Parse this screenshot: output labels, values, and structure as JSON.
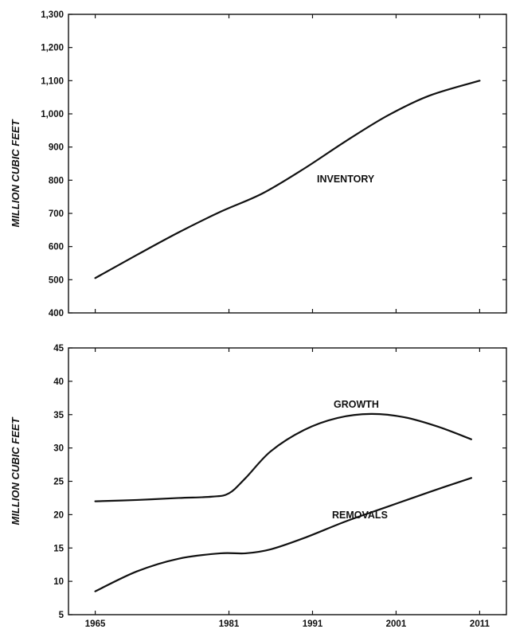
{
  "chart_data": [
    {
      "type": "line",
      "ylabel": "MILLION CUBIC FEET",
      "ylim": [
        400,
        1300
      ],
      "yticks": [
        "400",
        "500",
        "600",
        "700",
        "800",
        "900",
        "1,000",
        "1,100",
        "1,200",
        "1,300"
      ],
      "x_ticks": [
        1965,
        1981,
        1991,
        2001,
        2011
      ],
      "grid": false,
      "series": [
        {
          "name": "INVENTORY",
          "x": [
            1965,
            1970,
            1975,
            1980,
            1985,
            1990,
            1995,
            2000,
            2005,
            2011
          ],
          "y": [
            505,
            575,
            643,
            705,
            760,
            835,
            918,
            995,
            1055,
            1100
          ]
        }
      ]
    },
    {
      "type": "line",
      "ylabel": "MILLION CUBIC FEET",
      "ylim": [
        5,
        45
      ],
      "yticks": [
        "5",
        "10",
        "15",
        "20",
        "25",
        "30",
        "35",
        "40",
        "45"
      ],
      "x_ticks": [
        1965,
        1981,
        1991,
        2001,
        2011
      ],
      "xtick_labels": [
        "1965",
        "1981",
        "1991",
        "2001",
        "2011"
      ],
      "grid": false,
      "series": [
        {
          "name": "GROWTH",
          "x": [
            1965,
            1970,
            1975,
            1979,
            1981,
            1983,
            1986,
            1990,
            1994,
            1998,
            2002,
            2006,
            2010
          ],
          "y": [
            22,
            22.2,
            22.5,
            22.7,
            23.2,
            25.5,
            29.5,
            32.7,
            34.5,
            35.1,
            34.6,
            33.2,
            31.3
          ]
        },
        {
          "name": "REMOVALS",
          "x": [
            1965,
            1970,
            1975,
            1980,
            1983,
            1986,
            1990,
            1995,
            2000,
            2005,
            2010
          ],
          "y": [
            8.5,
            11.5,
            13.4,
            14.2,
            14.2,
            14.8,
            16.5,
            19,
            21.2,
            23.4,
            25.5
          ]
        }
      ]
    }
  ]
}
